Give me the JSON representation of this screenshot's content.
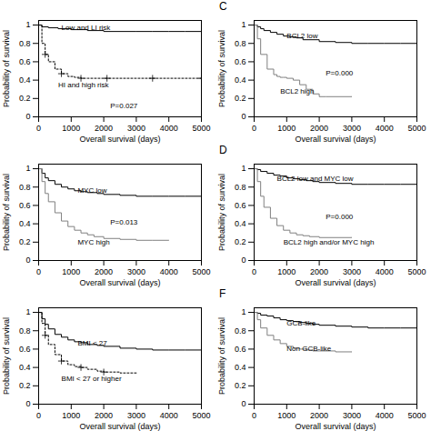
{
  "chart_data": [
    {
      "type": "step",
      "xlabel": "Overall survival (days)",
      "ylabel": "Probability of survival",
      "xlim": [
        0,
        5000
      ],
      "xticks": [
        0,
        1000,
        2000,
        3000,
        4000,
        5000
      ],
      "ylim": [
        0.0,
        1.05
      ],
      "yticks": [
        0,
        0.2,
        0.4,
        0.6,
        0.8,
        1
      ],
      "series": [
        {
          "name": "Low and LI risk",
          "color": "black",
          "line_style": "solid",
          "x": [
            0,
            100,
            300,
            600,
            1000,
            1500,
            2000,
            2500,
            3000,
            3500,
            4000,
            4500,
            5000
          ],
          "values": [
            1.0,
            0.98,
            0.97,
            0.96,
            0.95,
            0.94,
            0.93,
            0.93,
            0.93,
            0.93,
            0.93,
            0.93,
            0.93
          ]
        },
        {
          "name": "HI and high risk",
          "color": "black",
          "line_style": "dotted",
          "marker": "+",
          "x": [
            0,
            100,
            200,
            300,
            500,
            700,
            900,
            1100,
            1300,
            1500,
            1800,
            2100,
            2500,
            3000,
            3500,
            4000,
            4500,
            5000
          ],
          "values": [
            1.0,
            0.8,
            0.68,
            0.6,
            0.52,
            0.47,
            0.44,
            0.43,
            0.42,
            0.42,
            0.42,
            0.42,
            0.42,
            0.42,
            0.42,
            0.42,
            0.42,
            0.42
          ]
        }
      ],
      "annotations": [
        {
          "text": "Low and LI risk",
          "x": 700,
          "y": 0.97
        },
        {
          "text": "HI and high risk",
          "x": 600,
          "y": 0.35
        },
        {
          "text": "P=0.027",
          "x": 2200,
          "y": 0.12
        }
      ]
    },
    {
      "type": "step",
      "title": "C",
      "xlabel": "Overall survival (days)",
      "ylabel": "Probability of survival",
      "xlim": [
        0,
        5000
      ],
      "xticks": [
        0,
        1000,
        2000,
        3000,
        4000,
        5000
      ],
      "ylim": [
        0.0,
        1.05
      ],
      "yticks": [
        0,
        0.2,
        0.4,
        0.6,
        0.8,
        1
      ],
      "series": [
        {
          "name": "BCL2 low",
          "color": "black",
          "line_style": "solid",
          "x": [
            0,
            100,
            200,
            300,
            500,
            700,
            900,
            1100,
            1300,
            1500,
            2000,
            2500,
            3000,
            3500,
            4000,
            4500,
            5000
          ],
          "values": [
            1.0,
            0.98,
            0.96,
            0.94,
            0.92,
            0.9,
            0.88,
            0.87,
            0.86,
            0.84,
            0.82,
            0.81,
            0.8,
            0.8,
            0.8,
            0.8,
            0.8
          ]
        },
        {
          "name": "BCL2 high",
          "color": "gray",
          "line_style": "solid",
          "x": [
            0,
            100,
            200,
            400,
            600,
            700,
            800,
            900,
            1000,
            1200,
            1400,
            1600,
            1800,
            2000,
            2200,
            2500,
            3000
          ],
          "values": [
            1.0,
            0.85,
            0.68,
            0.52,
            0.46,
            0.44,
            0.43,
            0.43,
            0.42,
            0.4,
            0.35,
            0.3,
            0.25,
            0.22,
            0.22,
            0.22,
            0.22
          ]
        }
      ],
      "annotations": [
        {
          "text": "BCL2 low",
          "x": 1000,
          "y": 0.88
        },
        {
          "text": "BCL2 high",
          "x": 800,
          "y": 0.28
        },
        {
          "text": "P=0.000",
          "x": 2200,
          "y": 0.48
        }
      ]
    },
    {
      "type": "step",
      "xlabel": "Overall survival (days)",
      "ylabel": "Probability of survival",
      "xlim": [
        0,
        5000
      ],
      "xticks": [
        0,
        1000,
        2000,
        3000,
        4000,
        5000
      ],
      "ylim": [
        0.0,
        1.05
      ],
      "yticks": [
        0,
        0.2,
        0.4,
        0.6,
        0.8,
        1
      ],
      "series": [
        {
          "name": "MYC low",
          "color": "black",
          "line_style": "solid",
          "x": [
            0,
            100,
            200,
            300,
            500,
            700,
            900,
            1100,
            1300,
            1500,
            1800,
            2000,
            2500,
            3000,
            3500,
            4000,
            4500,
            5000
          ],
          "values": [
            1.0,
            0.95,
            0.9,
            0.87,
            0.83,
            0.8,
            0.78,
            0.76,
            0.75,
            0.74,
            0.73,
            0.72,
            0.71,
            0.7,
            0.7,
            0.7,
            0.7,
            0.7
          ]
        },
        {
          "name": "MYC high",
          "color": "gray",
          "line_style": "solid",
          "x": [
            0,
            100,
            200,
            300,
            500,
            700,
            900,
            1100,
            1300,
            1500,
            1700,
            2000,
            2500,
            3000,
            3500,
            4000
          ],
          "values": [
            1.0,
            0.86,
            0.73,
            0.64,
            0.52,
            0.43,
            0.37,
            0.33,
            0.3,
            0.28,
            0.26,
            0.24,
            0.23,
            0.22,
            0.22,
            0.22
          ]
        }
      ],
      "annotations": [
        {
          "text": "MYC low",
          "x": 1200,
          "y": 0.76
        },
        {
          "text": "MYC high",
          "x": 1200,
          "y": 0.2
        },
        {
          "text": "P=0.013",
          "x": 2200,
          "y": 0.42
        }
      ]
    },
    {
      "type": "step",
      "title": "D",
      "xlabel": "Overall survival (days)",
      "ylabel": "Probability of survival",
      "xlim": [
        0,
        5000
      ],
      "xticks": [
        0,
        1000,
        2000,
        3000,
        4000,
        5000
      ],
      "ylim": [
        0.0,
        1.05
      ],
      "yticks": [
        0,
        0.2,
        0.4,
        0.6,
        0.8,
        1
      ],
      "series": [
        {
          "name": "BCL2 low and MYC low",
          "color": "black",
          "line_style": "solid",
          "x": [
            0,
            100,
            200,
            400,
            600,
            800,
            1000,
            1200,
            1400,
            1600,
            1800,
            2000,
            2500,
            3000,
            3500,
            4000,
            4500,
            5000
          ],
          "values": [
            1.0,
            0.99,
            0.97,
            0.95,
            0.93,
            0.92,
            0.9,
            0.89,
            0.88,
            0.87,
            0.86,
            0.85,
            0.84,
            0.83,
            0.83,
            0.83,
            0.83,
            0.83
          ]
        },
        {
          "name": "BCL2 high and/or MYC high",
          "color": "gray",
          "line_style": "solid",
          "x": [
            0,
            100,
            200,
            300,
            500,
            700,
            900,
            1100,
            1300,
            1500,
            1700,
            2000,
            2500,
            3000
          ],
          "values": [
            1.0,
            0.86,
            0.7,
            0.58,
            0.46,
            0.38,
            0.33,
            0.3,
            0.28,
            0.27,
            0.26,
            0.25,
            0.25,
            0.25
          ]
        }
      ],
      "annotations": [
        {
          "text": "BCL2 low and MYC low",
          "x": 700,
          "y": 0.89
        },
        {
          "text": "BCL2 high and/or MYC high",
          "x": 900,
          "y": 0.2
        },
        {
          "text": "P=0.000",
          "x": 2200,
          "y": 0.48
        }
      ]
    },
    {
      "type": "step",
      "xlabel": "Overall survival (days)",
      "ylabel": "Probability of survival",
      "xlim": [
        0,
        5000
      ],
      "xticks": [
        0,
        1000,
        2000,
        3000,
        4000,
        5000
      ],
      "ylim": [
        0.0,
        1.05
      ],
      "yticks": [
        0,
        0.2,
        0.4,
        0.6,
        0.8,
        1
      ],
      "series": [
        {
          "name": "BMI < 27",
          "color": "black",
          "line_style": "solid",
          "x": [
            0,
            100,
            200,
            300,
            500,
            700,
            900,
            1100,
            1300,
            1500,
            1800,
            2000,
            2500,
            3000,
            3500,
            4000,
            4500,
            5000
          ],
          "values": [
            1.0,
            0.93,
            0.87,
            0.82,
            0.76,
            0.73,
            0.7,
            0.68,
            0.67,
            0.65,
            0.64,
            0.63,
            0.61,
            0.6,
            0.59,
            0.59,
            0.59,
            0.59
          ]
        },
        {
          "name": "BMI < 27 or higher",
          "color": "black",
          "line_style": "dotted",
          "marker": "+",
          "x": [
            0,
            100,
            200,
            300,
            500,
            700,
            900,
            1100,
            1300,
            1500,
            1800,
            2000,
            2500,
            3000
          ],
          "values": [
            1.0,
            0.88,
            0.75,
            0.65,
            0.54,
            0.47,
            0.43,
            0.41,
            0.4,
            0.38,
            0.36,
            0.35,
            0.34,
            0.34
          ]
        }
      ],
      "annotations": [
        {
          "text": "BMI < 27",
          "x": 1200,
          "y": 0.66
        },
        {
          "text": "BMI < 27 or higher",
          "x": 700,
          "y": 0.28
        }
      ]
    },
    {
      "type": "step",
      "title": "F",
      "xlabel": "Overall survival (days)",
      "ylabel": "Probability of survival",
      "xlim": [
        0,
        5000
      ],
      "xticks": [
        0,
        1000,
        2000,
        3000,
        4000,
        5000
      ],
      "ylim": [
        0.0,
        1.05
      ],
      "yticks": [
        0,
        0.2,
        0.4,
        0.6,
        0.8,
        1
      ],
      "series": [
        {
          "name": "GCB-like",
          "color": "black",
          "line_style": "solid",
          "x": [
            0,
            100,
            200,
            400,
            600,
            800,
            1000,
            1200,
            1400,
            1600,
            1800,
            2000,
            2500,
            3000,
            3500,
            4000,
            4500,
            5000
          ],
          "values": [
            1.0,
            0.99,
            0.97,
            0.96,
            0.94,
            0.92,
            0.91,
            0.9,
            0.89,
            0.88,
            0.87,
            0.86,
            0.85,
            0.84,
            0.83,
            0.83,
            0.83,
            0.83
          ]
        },
        {
          "name": "Non GCB-like",
          "color": "gray",
          "line_style": "solid",
          "x": [
            0,
            100,
            200,
            400,
            600,
            800,
            1000,
            1200,
            1400,
            1600,
            1800,
            2000,
            2500,
            3000
          ],
          "values": [
            1.0,
            0.92,
            0.83,
            0.75,
            0.7,
            0.66,
            0.63,
            0.61,
            0.6,
            0.59,
            0.58,
            0.58,
            0.57,
            0.57
          ]
        }
      ],
      "annotations": [
        {
          "text": "GCB-like",
          "x": 1000,
          "y": 0.88
        },
        {
          "text": "Non GCB-like",
          "x": 1000,
          "y": 0.6
        }
      ]
    }
  ]
}
